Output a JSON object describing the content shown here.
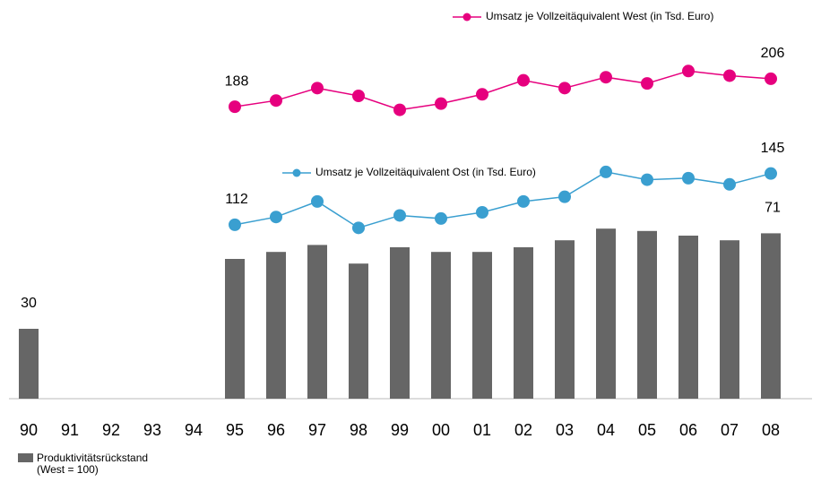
{
  "chart_data": {
    "type": "bar_line",
    "categories": [
      "90",
      "91",
      "92",
      "93",
      "94",
      "95",
      "96",
      "97",
      "98",
      "99",
      "00",
      "01",
      "02",
      "03",
      "04",
      "05",
      "06",
      "07",
      "08"
    ],
    "ylim": [
      0,
      160
    ],
    "y2lim": [
      0,
      240
    ],
    "series": [
      {
        "name": "Produktivitätsrückstand (West = 100)",
        "type": "bar",
        "color": "#666666",
        "values": [
          30,
          null,
          null,
          null,
          null,
          60,
          63,
          66,
          58,
          65,
          63,
          63,
          65,
          68,
          73,
          72,
          70,
          68,
          71
        ],
        "labeled": [
          0,
          18
        ]
      },
      {
        "name": "Umsatz je Vollzeitäquivalent West (in Tsd. Euro)",
        "type": "line",
        "axis": "y2",
        "color": "#e6007e",
        "values": [
          null,
          null,
          null,
          null,
          null,
          188,
          192,
          200,
          195,
          186,
          190,
          196,
          205,
          200,
          207,
          203,
          211,
          208,
          206
        ],
        "labeled": [
          5,
          18
        ]
      },
      {
        "name": "Umsatz je Vollzeitäquivalent Ost (in Tsd. Euro)",
        "type": "line",
        "axis": "y2",
        "color": "#3a9fd0",
        "values": [
          null,
          null,
          null,
          null,
          null,
          112,
          117,
          127,
          110,
          118,
          116,
          120,
          127,
          130,
          146,
          141,
          142,
          138,
          145
        ],
        "labeled": [
          5,
          18
        ]
      }
    ]
  }
}
